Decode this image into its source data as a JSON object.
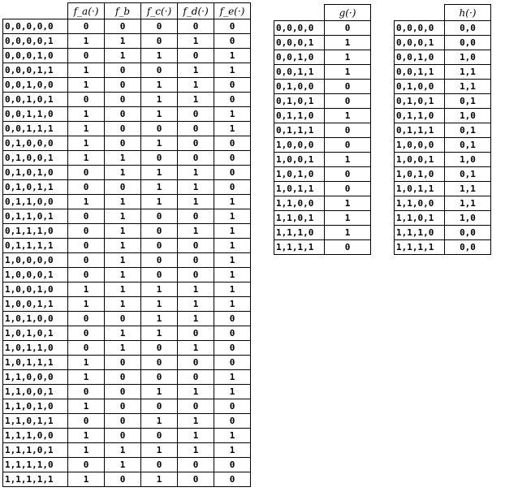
{
  "table_f": {
    "headers": [
      "f_a(·)",
      "f_b",
      "f_c(·)",
      "f_d(·)",
      "f_e(·)"
    ],
    "rows": [
      [
        "0,0,0,0,0",
        "0",
        "0",
        "0",
        "0",
        "0"
      ],
      [
        "0,0,0,0,1",
        "1",
        "1",
        "0",
        "1",
        "0"
      ],
      [
        "0,0,0,1,0",
        "0",
        "1",
        "1",
        "0",
        "1"
      ],
      [
        "0,0,0,1,1",
        "1",
        "0",
        "0",
        "1",
        "1"
      ],
      [
        "0,0,1,0,0",
        "1",
        "0",
        "1",
        "1",
        "0"
      ],
      [
        "0,0,1,0,1",
        "0",
        "0",
        "1",
        "1",
        "0"
      ],
      [
        "0,0,1,1,0",
        "1",
        "0",
        "1",
        "0",
        "1"
      ],
      [
        "0,0,1,1,1",
        "1",
        "0",
        "0",
        "0",
        "1"
      ],
      [
        "0,1,0,0,0",
        "1",
        "0",
        "1",
        "0",
        "0"
      ],
      [
        "0,1,0,0,1",
        "1",
        "1",
        "0",
        "0",
        "0"
      ],
      [
        "0,1,0,1,0",
        "0",
        "1",
        "1",
        "1",
        "0"
      ],
      [
        "0,1,0,1,1",
        "0",
        "0",
        "1",
        "1",
        "0"
      ],
      [
        "0,1,1,0,0",
        "1",
        "1",
        "1",
        "1",
        "1"
      ],
      [
        "0,1,1,0,1",
        "0",
        "1",
        "0",
        "0",
        "1"
      ],
      [
        "0,1,1,1,0",
        "0",
        "1",
        "0",
        "1",
        "1"
      ],
      [
        "0,1,1,1,1",
        "0",
        "1",
        "0",
        "0",
        "1"
      ],
      [
        "1,0,0,0,0",
        "0",
        "1",
        "0",
        "0",
        "1"
      ],
      [
        "1,0,0,0,1",
        "0",
        "1",
        "0",
        "0",
        "1"
      ],
      [
        "1,0,0,1,0",
        "1",
        "1",
        "1",
        "1",
        "1"
      ],
      [
        "1,0,0,1,1",
        "1",
        "1",
        "1",
        "1",
        "1"
      ],
      [
        "1,0,1,0,0",
        "0",
        "0",
        "1",
        "1",
        "0"
      ],
      [
        "1,0,1,0,1",
        "0",
        "1",
        "1",
        "0",
        "0"
      ],
      [
        "1,0,1,1,0",
        "0",
        "1",
        "0",
        "1",
        "0"
      ],
      [
        "1,0,1,1,1",
        "1",
        "0",
        "0",
        "0",
        "0"
      ],
      [
        "1,1,0,0,0",
        "1",
        "0",
        "0",
        "0",
        "1"
      ],
      [
        "1,1,0,0,1",
        "0",
        "0",
        "1",
        "1",
        "1"
      ],
      [
        "1,1,0,1,0",
        "1",
        "0",
        "0",
        "0",
        "0"
      ],
      [
        "1,1,0,1,1",
        "0",
        "0",
        "1",
        "1",
        "0"
      ],
      [
        "1,1,1,0,0",
        "1",
        "0",
        "0",
        "1",
        "1"
      ],
      [
        "1,1,1,0,1",
        "1",
        "1",
        "1",
        "1",
        "1"
      ],
      [
        "1,1,1,1,0",
        "0",
        "1",
        "0",
        "0",
        "0"
      ],
      [
        "1,1,1,1,1",
        "1",
        "0",
        "1",
        "0",
        "0"
      ]
    ]
  },
  "table_g": {
    "headers": [
      "g(·)"
    ],
    "rows": [
      [
        "0,0,0,0",
        "0"
      ],
      [
        "0,0,0,1",
        "1"
      ],
      [
        "0,0,1,0",
        "1"
      ],
      [
        "0,0,1,1",
        "1"
      ],
      [
        "0,1,0,0",
        "0"
      ],
      [
        "0,1,0,1",
        "0"
      ],
      [
        "0,1,1,0",
        "1"
      ],
      [
        "0,1,1,1",
        "0"
      ],
      [
        "1,0,0,0",
        "0"
      ],
      [
        "1,0,0,1",
        "1"
      ],
      [
        "1,0,1,0",
        "0"
      ],
      [
        "1,0,1,1",
        "0"
      ],
      [
        "1,1,0,0",
        "1"
      ],
      [
        "1,1,0,1",
        "1"
      ],
      [
        "1,1,1,0",
        "1"
      ],
      [
        "1,1,1,1",
        "0"
      ]
    ]
  },
  "table_h": {
    "headers": [
      "h(·)"
    ],
    "rows": [
      [
        "0,0,0,0",
        "0,0"
      ],
      [
        "0,0,0,1",
        "0,0"
      ],
      [
        "0,0,1,0",
        "1,0"
      ],
      [
        "0,0,1,1",
        "1,1"
      ],
      [
        "0,1,0,0",
        "1,1"
      ],
      [
        "0,1,0,1",
        "0,1"
      ],
      [
        "0,1,1,0",
        "1,0"
      ],
      [
        "0,1,1,1",
        "0,1"
      ],
      [
        "1,0,0,0",
        "0,1"
      ],
      [
        "1,0,0,1",
        "1,0"
      ],
      [
        "1,0,1,0",
        "0,1"
      ],
      [
        "1,0,1,1",
        "1,1"
      ],
      [
        "1,1,0,0",
        "1,1"
      ],
      [
        "1,1,0,1",
        "1,0"
      ],
      [
        "1,1,1,0",
        "0,0"
      ],
      [
        "1,1,1,1",
        "0,0"
      ]
    ]
  }
}
